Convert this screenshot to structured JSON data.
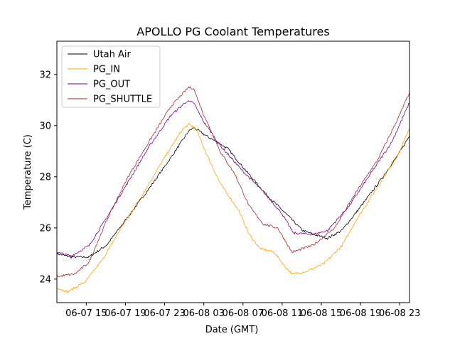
{
  "chart_data": {
    "type": "line",
    "title": "APOLLO PG Coolant Temperatures",
    "xlabel": "Date (GMT)",
    "ylabel": "Temperature (C)",
    "x_unit": "hours since 06-07 12:00 GMT",
    "xlim": [
      0,
      36
    ],
    "ylim": [
      23.08,
      33.3
    ],
    "yticks": [
      24,
      26,
      28,
      30,
      32
    ],
    "xticks": [
      {
        "x": 3,
        "label": "06-07 15"
      },
      {
        "x": 7,
        "label": "06-07 19"
      },
      {
        "x": 11,
        "label": "06-07 23"
      },
      {
        "x": 15,
        "label": "06-08 03"
      },
      {
        "x": 19,
        "label": "06-08 07"
      },
      {
        "x": 23,
        "label": "06-08 11"
      },
      {
        "x": 27,
        "label": "06-08 15"
      },
      {
        "x": 31,
        "label": "06-08 19"
      },
      {
        "x": 35,
        "label": "06-08 23"
      }
    ],
    "grid": false,
    "legend_position": "top-left",
    "series": [
      {
        "name": "Utah Air",
        "color": "#000000",
        "x": [
          0,
          1.45,
          3.27,
          5.09,
          7.27,
          9.45,
          11.64,
          13.45,
          13.96,
          15.27,
          17.45,
          19.27,
          21.45,
          23.27,
          25.09,
          26.18,
          27.64,
          29.09,
          30.55,
          32.73,
          34.91,
          36.0
        ],
        "y": [
          25.0,
          24.86,
          24.86,
          25.33,
          26.44,
          27.56,
          28.75,
          29.78,
          29.92,
          29.6,
          29.1,
          28.25,
          27.28,
          26.6,
          25.9,
          25.75,
          25.6,
          25.9,
          26.6,
          27.7,
          28.9,
          29.6
        ]
      },
      {
        "name": "PG_IN",
        "color": "#ffa500",
        "x": [
          0,
          1.09,
          2.91,
          4.73,
          6.55,
          8.73,
          10.91,
          12.73,
          13.45,
          14.18,
          15.27,
          16.73,
          18.55,
          19.64,
          20.73,
          22.18,
          23.27,
          24.0,
          25.45,
          27.27,
          29.09,
          30.55,
          32.73,
          34.91,
          36.0
        ],
        "y": [
          23.67,
          23.5,
          23.9,
          24.8,
          26.0,
          27.3,
          28.7,
          29.8,
          30.05,
          29.9,
          28.9,
          27.7,
          26.7,
          25.75,
          25.2,
          25.05,
          24.5,
          24.2,
          24.3,
          24.6,
          25.3,
          26.3,
          27.6,
          28.9,
          29.9
        ]
      },
      {
        "name": "PG_OUT",
        "color": "#800080",
        "x": [
          0,
          1.45,
          3.27,
          5.09,
          7.27,
          9.45,
          11.64,
          13.24,
          13.96,
          14.91,
          16.73,
          18.91,
          21.09,
          22.91,
          24.15,
          26.18,
          27.64,
          29.82,
          32.0,
          34.18,
          36.0
        ],
        "y": [
          25.05,
          24.9,
          25.3,
          26.4,
          27.8,
          29.2,
          30.4,
          30.95,
          30.9,
          30.2,
          29.2,
          28.25,
          27.4,
          26.6,
          25.8,
          25.75,
          25.9,
          26.85,
          28.1,
          29.35,
          30.9
        ]
      },
      {
        "name": "PG_SHUTTLE",
        "color": "#a52a2a",
        "x": [
          0,
          1.82,
          3.27,
          5.09,
          7.27,
          9.45,
          11.64,
          13.45,
          13.96,
          14.91,
          16.73,
          18.18,
          19.64,
          21.09,
          22.55,
          24.0,
          26.18,
          28.36,
          30.55,
          32.73,
          34.91,
          36.0
        ],
        "y": [
          24.1,
          24.2,
          24.65,
          26.3,
          28.0,
          29.4,
          30.75,
          31.5,
          31.45,
          30.5,
          28.95,
          28.1,
          26.85,
          26.15,
          26.0,
          25.05,
          25.33,
          26.0,
          27.4,
          28.65,
          30.35,
          31.3
        ]
      }
    ]
  }
}
